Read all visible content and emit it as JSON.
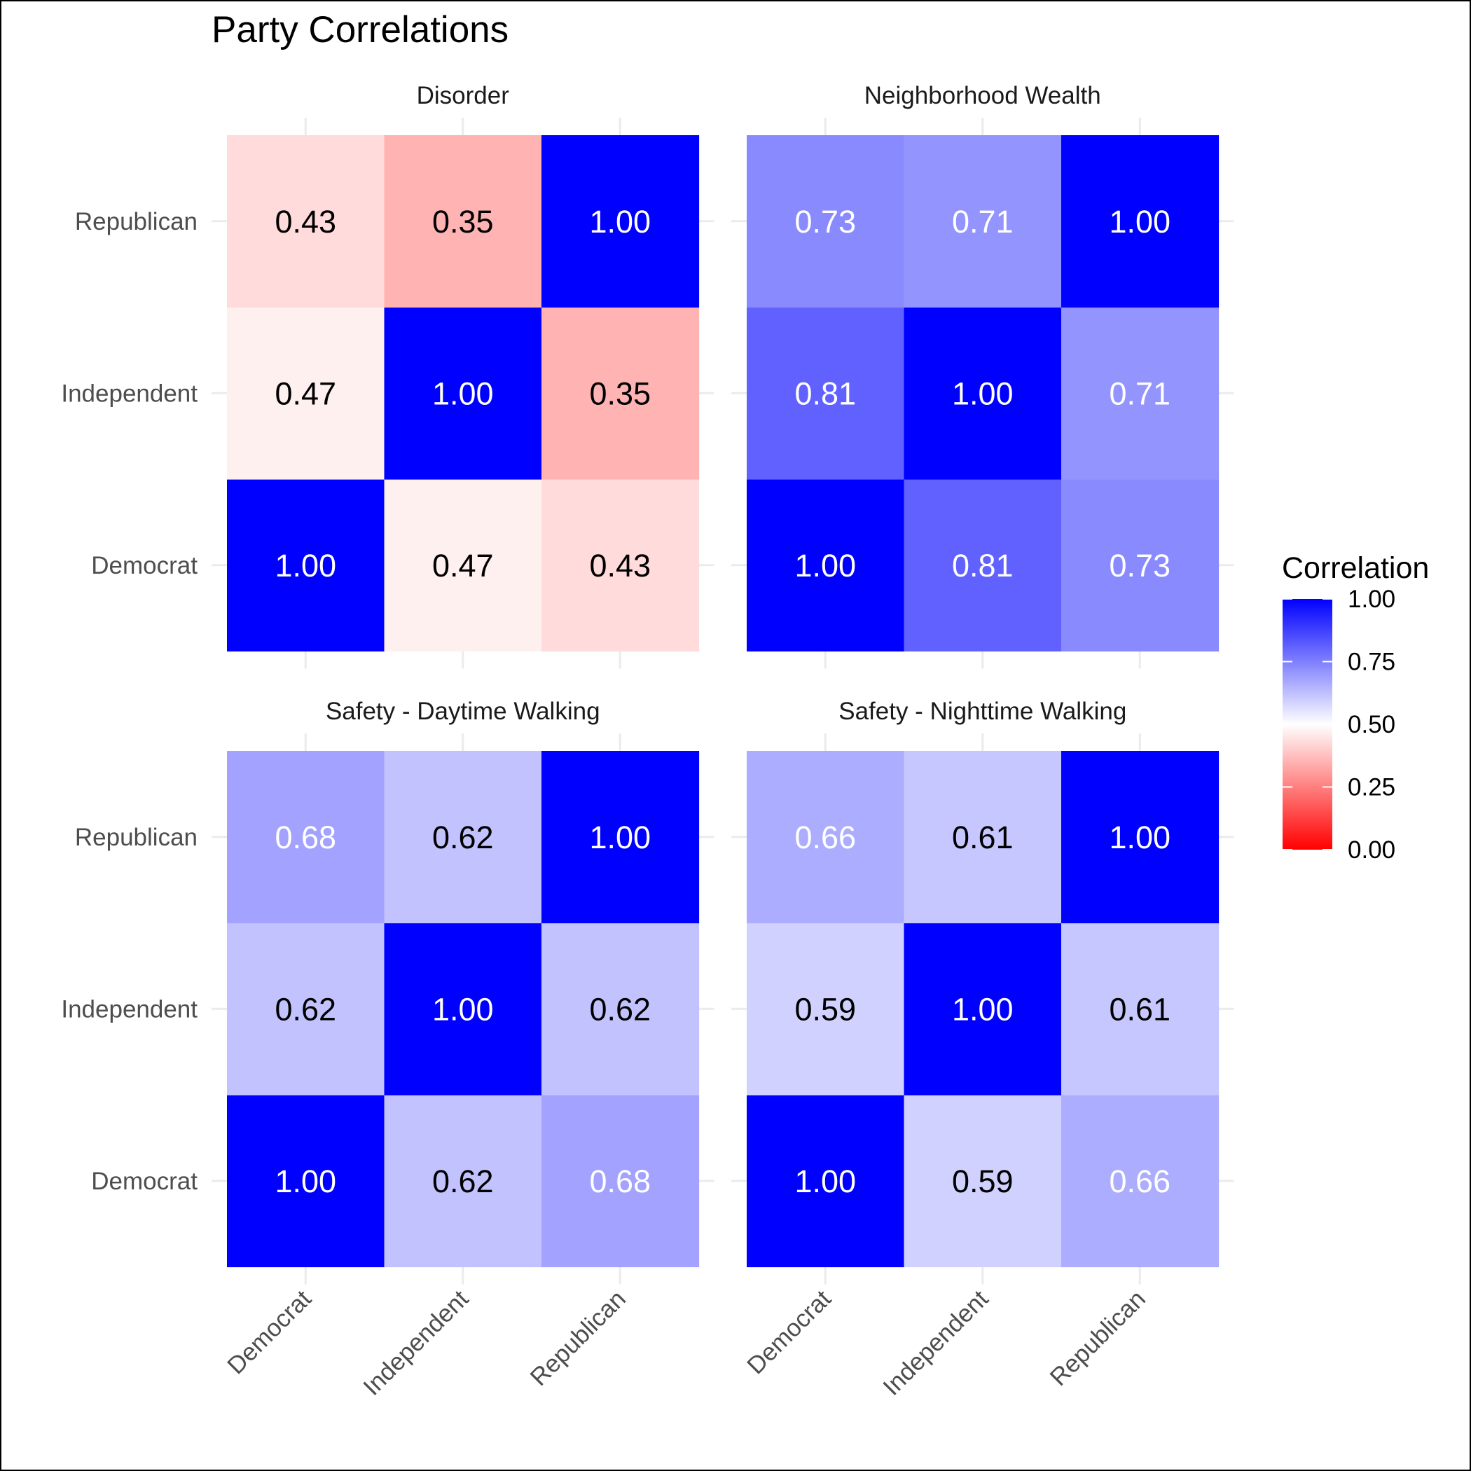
{
  "chart_data": {
    "type": "heatmap",
    "title": "Party Correlations",
    "categories": [
      "Democrat",
      "Independent",
      "Republican"
    ],
    "colorscale": {
      "low": "#ff0000",
      "mid": "#ffffff",
      "high": "#0000ff",
      "midpoint": 0.5,
      "limits": [
        0,
        1
      ]
    },
    "legend": {
      "title": "Correlation",
      "position": "right",
      "ticks": [
        "0.00",
        "0.25",
        "0.50",
        "0.75",
        "1.00"
      ],
      "tick_values": [
        0,
        0.25,
        0.5,
        0.75,
        1
      ]
    },
    "panels": [
      {
        "name": "Disorder",
        "matrix": [
          [
            1.0,
            0.47,
            0.43
          ],
          [
            0.47,
            1.0,
            0.35
          ],
          [
            0.43,
            0.35,
            1.0
          ]
        ]
      },
      {
        "name": "Neighborhood Wealth",
        "matrix": [
          [
            1.0,
            0.81,
            0.73
          ],
          [
            0.81,
            1.0,
            0.71
          ],
          [
            0.73,
            0.71,
            1.0
          ]
        ]
      },
      {
        "name": "Safety - Daytime Walking",
        "matrix": [
          [
            1.0,
            0.62,
            0.68
          ],
          [
            0.62,
            1.0,
            0.62
          ],
          [
            0.68,
            0.62,
            1.0
          ]
        ]
      },
      {
        "name": "Safety - Nighttime Walking",
        "matrix": [
          [
            1.0,
            0.59,
            0.66
          ],
          [
            0.59,
            1.0,
            0.61
          ],
          [
            0.66,
            0.61,
            1.0
          ]
        ]
      }
    ]
  }
}
